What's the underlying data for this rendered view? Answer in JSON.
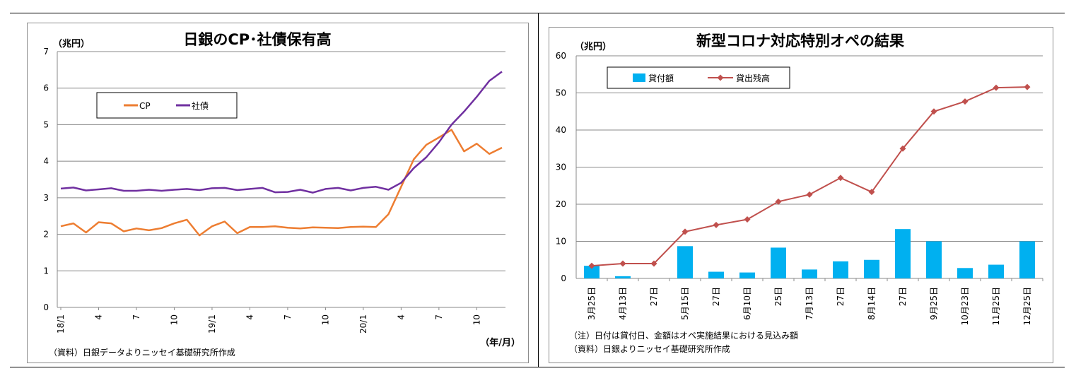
{
  "chart_data": [
    {
      "type": "line",
      "title": "日銀のCP･社債保有高",
      "yunit": "（兆円）",
      "xunit": "（年/月）",
      "source": "（資料）日銀データよりニッセイ基礎研究所作成",
      "ylim": [
        0,
        7
      ],
      "yticks": [
        "0",
        "1",
        "2",
        "3",
        "4",
        "5",
        "6",
        "7"
      ],
      "x_tick_labels": [
        {
          "i": 0,
          "label": "18/1"
        },
        {
          "i": 3,
          "label": "4"
        },
        {
          "i": 6,
          "label": "7"
        },
        {
          "i": 9,
          "label": "10"
        },
        {
          "i": 12,
          "label": "19/1"
        },
        {
          "i": 15,
          "label": "4"
        },
        {
          "i": 18,
          "label": "7"
        },
        {
          "i": 21,
          "label": "10"
        },
        {
          "i": 24,
          "label": "20/1"
        },
        {
          "i": 27,
          "label": "4"
        },
        {
          "i": 30,
          "label": "7"
        },
        {
          "i": 33,
          "label": "10"
        }
      ],
      "legend_placement": "top-left",
      "series": [
        {
          "name": "CP",
          "color": "#ed7d31",
          "values": [
            2.22,
            2.3,
            2.05,
            2.33,
            2.3,
            2.08,
            2.16,
            2.11,
            2.17,
            2.3,
            2.4,
            1.97,
            2.22,
            2.35,
            2.03,
            2.2,
            2.2,
            2.22,
            2.18,
            2.16,
            2.19,
            2.18,
            2.17,
            2.2,
            2.21,
            2.2,
            2.55,
            3.3,
            4.05,
            4.45,
            4.65,
            4.86,
            4.27,
            4.48,
            4.2,
            4.37
          ]
        },
        {
          "name": "社債",
          "color": "#7030a0",
          "values": [
            3.25,
            3.28,
            3.2,
            3.23,
            3.26,
            3.19,
            3.19,
            3.22,
            3.19,
            3.22,
            3.24,
            3.21,
            3.26,
            3.27,
            3.21,
            3.24,
            3.27,
            3.15,
            3.16,
            3.22,
            3.14,
            3.24,
            3.27,
            3.2,
            3.27,
            3.3,
            3.22,
            3.41,
            3.81,
            4.11,
            4.52,
            5.0,
            5.36,
            5.76,
            6.2,
            6.45
          ]
        }
      ]
    },
    {
      "type": "bar+line",
      "title": "新型コロナ対応特別オペの結果",
      "yunit": "（兆円）",
      "ylim": [
        0,
        60
      ],
      "yticks": [
        "0",
        "10",
        "20",
        "30",
        "40",
        "50",
        "60"
      ],
      "categories": [
        "3月25日",
        "4月13日",
        "27日",
        "5月15日",
        "27日",
        "6月10日",
        "25日",
        "7月13日",
        "27日",
        "8月14日",
        "27日",
        "9月25日",
        "10月23日",
        "11月25日",
        "12月25日"
      ],
      "legend_placement": "top-left",
      "series": [
        {
          "name": "貸付額",
          "kind": "bar",
          "color": "#00b0f0",
          "values": [
            3.4,
            0.6,
            0.0,
            8.7,
            1.8,
            1.6,
            8.3,
            2.4,
            4.6,
            5.0,
            13.3,
            10.0,
            2.8,
            3.7,
            10.0
          ]
        },
        {
          "name": "貸出残高",
          "kind": "line",
          "color": "#c0504d",
          "values": [
            3.4,
            4.0,
            4.0,
            12.6,
            14.4,
            15.9,
            20.7,
            22.6,
            27.1,
            23.3,
            35.0,
            45.0,
            47.7,
            51.4,
            51.6
          ]
        }
      ],
      "notes": [
        "（注）日付は貸付日、金額はオペ実施結果における見込み額",
        "（資料）日銀よりニッセイ基礎研究所作成"
      ]
    }
  ]
}
